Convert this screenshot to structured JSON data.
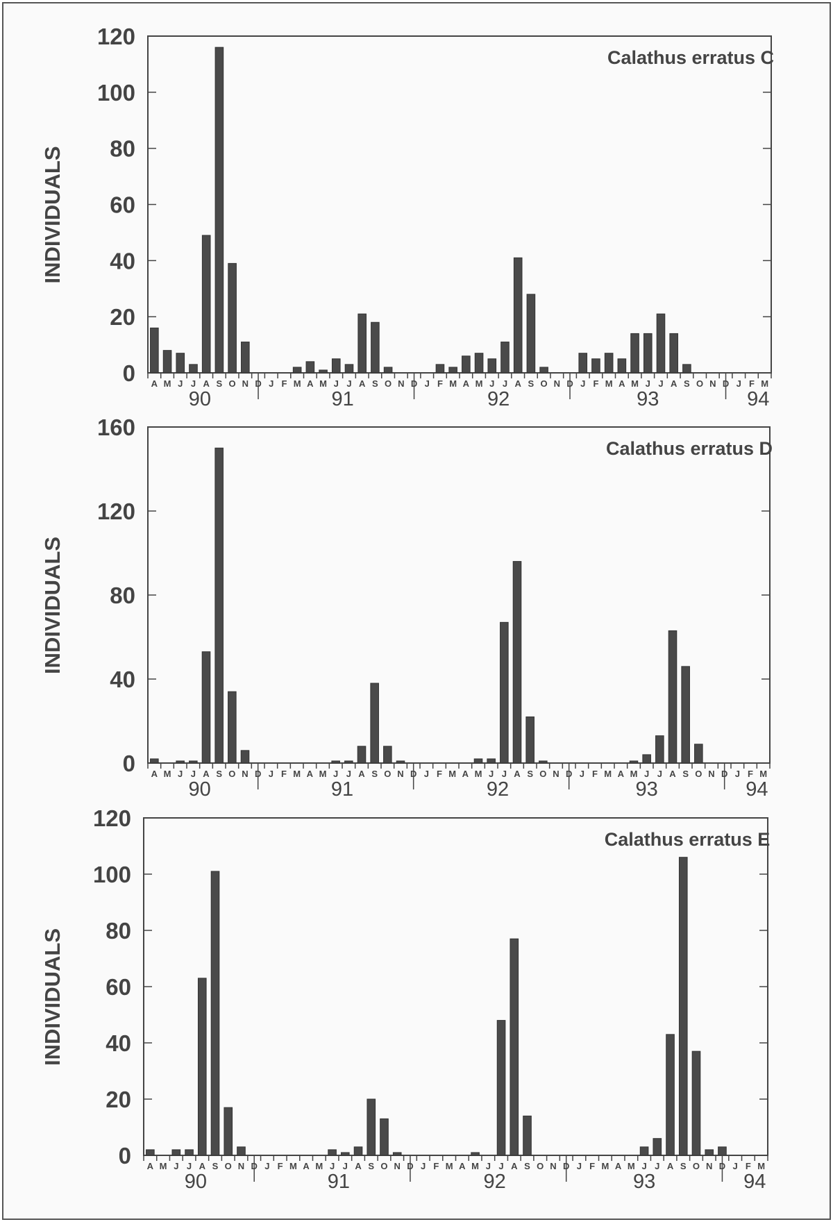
{
  "chart_data": [
    {
      "type": "bar",
      "title": "Calathus erratus C",
      "ylabel": "INDIVIDUALS",
      "ylim": [
        0,
        120
      ],
      "yticks": [
        0,
        20,
        40,
        60,
        80,
        100,
        120
      ],
      "month_labels": [
        "A",
        "M",
        "J",
        "J",
        "A",
        "S",
        "O",
        "N",
        "D",
        "J",
        "F",
        "M",
        "A",
        "M",
        "J",
        "J",
        "A",
        "S",
        "O",
        "N",
        "D",
        "J",
        "F",
        "M",
        "A",
        "M",
        "J",
        "J",
        "A",
        "S",
        "O",
        "N",
        "D",
        "J",
        "F",
        "M",
        "A",
        "M",
        "J",
        "J",
        "A",
        "S",
        "O",
        "N",
        "D",
        "J",
        "F",
        "M"
      ],
      "year_labels": [
        {
          "label": "90",
          "month_index": 3.5
        },
        {
          "label": "91",
          "month_index": 14.5
        },
        {
          "label": "92",
          "month_index": 26.5
        },
        {
          "label": "93",
          "month_index": 38
        },
        {
          "label": "94",
          "month_index": 46.5
        }
      ],
      "year_separators": [
        8.5,
        20.5,
        32.5,
        44.5
      ],
      "values": [
        16,
        8,
        7,
        3,
        49,
        116,
        39,
        11,
        0,
        0,
        0,
        2,
        4,
        1,
        5,
        3,
        21,
        18,
        2,
        0,
        0,
        0,
        3,
        2,
        6,
        7,
        5,
        11,
        41,
        28,
        2,
        0,
        0,
        7,
        5,
        7,
        5,
        14,
        14,
        21,
        14,
        3,
        0,
        0,
        0,
        0,
        0,
        0
      ]
    },
    {
      "type": "bar",
      "title": "Calathus erratus D",
      "ylabel": "INDIVIDUALS",
      "ylim": [
        0,
        160
      ],
      "yticks": [
        0,
        40,
        80,
        120,
        160
      ],
      "month_labels": [
        "A",
        "M",
        "J",
        "J",
        "A",
        "S",
        "O",
        "N",
        "D",
        "J",
        "F",
        "M",
        "A",
        "M",
        "J",
        "J",
        "A",
        "S",
        "O",
        "N",
        "D",
        "J",
        "F",
        "M",
        "A",
        "M",
        "J",
        "J",
        "A",
        "S",
        "O",
        "N",
        "D",
        "J",
        "F",
        "M",
        "A",
        "M",
        "J",
        "J",
        "A",
        "S",
        "O",
        "N",
        "D",
        "J",
        "F",
        "M"
      ],
      "year_labels": [
        {
          "label": "90",
          "month_index": 3.5
        },
        {
          "label": "91",
          "month_index": 14.5
        },
        {
          "label": "92",
          "month_index": 26.5
        },
        {
          "label": "93",
          "month_index": 38
        },
        {
          "label": "94",
          "month_index": 46.5
        }
      ],
      "year_separators": [
        8.5,
        20.5,
        32.5,
        44.5
      ],
      "values": [
        2,
        0,
        1,
        1,
        53,
        150,
        34,
        6,
        0,
        0,
        0,
        0,
        0,
        0,
        1,
        1,
        8,
        38,
        8,
        1,
        0,
        0,
        0,
        0,
        0,
        2,
        2,
        67,
        96,
        22,
        1,
        0,
        0,
        0,
        0,
        0,
        0,
        1,
        4,
        13,
        63,
        46,
        9,
        0,
        0,
        0,
        0,
        0
      ]
    },
    {
      "type": "bar",
      "title": "Calathus erratus E",
      "ylabel": "INDIVIDUALS",
      "ylim": [
        0,
        120
      ],
      "yticks": [
        0,
        20,
        40,
        60,
        80,
        100,
        120
      ],
      "month_labels": [
        "A",
        "M",
        "J",
        "J",
        "A",
        "S",
        "O",
        "N",
        "D",
        "J",
        "F",
        "M",
        "A",
        "M",
        "J",
        "J",
        "A",
        "S",
        "O",
        "N",
        "D",
        "J",
        "F",
        "M",
        "A",
        "M",
        "J",
        "J",
        "A",
        "S",
        "O",
        "N",
        "D",
        "J",
        "F",
        "M",
        "A",
        "M",
        "J",
        "J",
        "A",
        "S",
        "O",
        "N",
        "D",
        "J",
        "F",
        "M"
      ],
      "year_labels": [
        {
          "label": "90",
          "month_index": 3.5
        },
        {
          "label": "91",
          "month_index": 14.5
        },
        {
          "label": "92",
          "month_index": 26.5
        },
        {
          "label": "93",
          "month_index": 38
        },
        {
          "label": "94",
          "month_index": 46.5
        }
      ],
      "year_separators": [
        8.5,
        20.5,
        32.5,
        44.5
      ],
      "values": [
        2,
        0,
        2,
        2,
        63,
        101,
        17,
        3,
        0,
        0,
        0,
        0,
        0,
        0,
        2,
        1,
        3,
        20,
        13,
        1,
        0,
        0,
        0,
        0,
        0,
        1,
        0,
        48,
        77,
        14,
        0,
        0,
        0,
        0,
        0,
        0,
        0,
        0,
        3,
        6,
        43,
        106,
        37,
        2,
        3,
        0,
        0,
        0
      ]
    }
  ],
  "colors": {
    "bar": "#4a4a4a",
    "frame": "#555555",
    "text": "#444444",
    "background": "#fafafa"
  }
}
